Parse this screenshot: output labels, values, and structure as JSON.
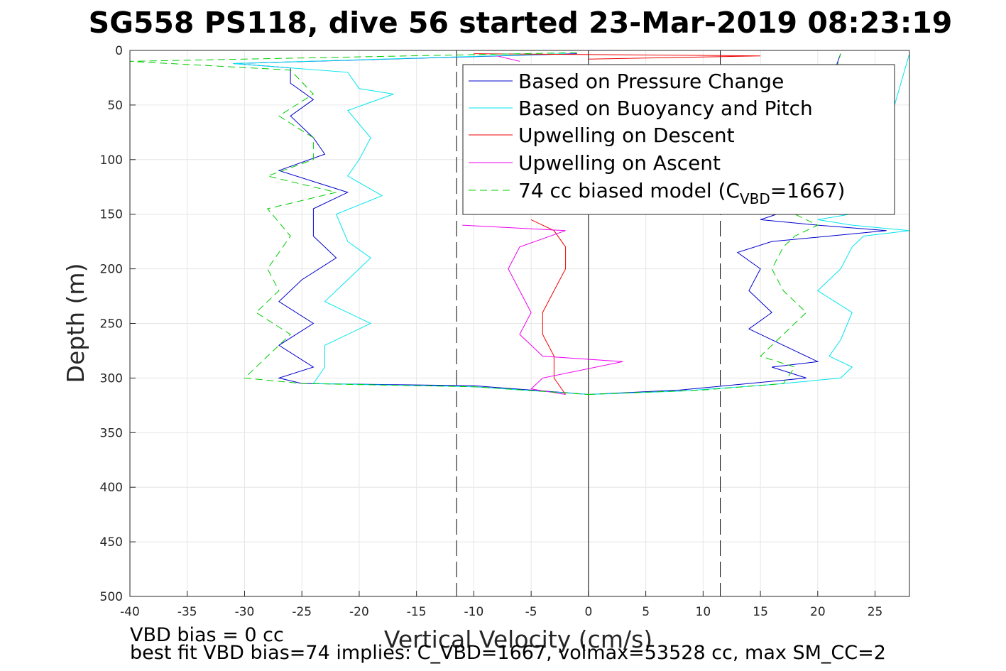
{
  "chart_data": {
    "type": "line",
    "title": "SG558 PS118, dive 56 started 23-Mar-2019 08:23:19",
    "xlabel": "Vertical Velocity (cm/s)",
    "ylabel": "Depth (m)",
    "xlim": [
      -40,
      28
    ],
    "ylim": [
      0,
      500
    ],
    "y_reversed": true,
    "x_ticks": [
      "-40",
      "-35",
      "-30",
      "-25",
      "-20",
      "-15",
      "-10",
      "-5",
      "0",
      "5",
      "10",
      "15",
      "20",
      "25"
    ],
    "y_ticks": [
      "0",
      "50",
      "100",
      "150",
      "200",
      "250",
      "300",
      "350",
      "400",
      "450",
      "500"
    ],
    "grid": true,
    "legend_position": "top-right",
    "vertical_lines": [
      {
        "x": -11.5,
        "style": "dashed"
      },
      {
        "x": 0,
        "style": "solid"
      },
      {
        "x": 11.5,
        "style": "dashed"
      }
    ],
    "series": [
      {
        "name": "Based on Pressure Change",
        "color": "#0000cc",
        "dash": false,
        "descent": [
          [
            -1,
            3
          ],
          [
            -31,
            12
          ],
          [
            -26,
            16
          ],
          [
            -26,
            30
          ],
          [
            -24,
            45
          ],
          [
            -26,
            60
          ],
          [
            -24,
            80
          ],
          [
            -23,
            95
          ],
          [
            -27,
            110
          ],
          [
            -24,
            120
          ],
          [
            -21,
            130
          ],
          [
            -24,
            145
          ],
          [
            -24,
            170
          ],
          [
            -22,
            190
          ],
          [
            -25,
            210
          ],
          [
            -27,
            230
          ],
          [
            -24,
            250
          ],
          [
            -27,
            270
          ],
          [
            -24,
            290
          ],
          [
            -27,
            300
          ],
          [
            -25,
            305
          ],
          [
            -10,
            307
          ],
          [
            0,
            315
          ]
        ],
        "ascent": [
          [
            0,
            315
          ],
          [
            8,
            311
          ],
          [
            14,
            305
          ],
          [
            19,
            300
          ],
          [
            16,
            290
          ],
          [
            20,
            285
          ],
          [
            17,
            270
          ],
          [
            14,
            255
          ],
          [
            16,
            240
          ],
          [
            14,
            220
          ],
          [
            15,
            200
          ],
          [
            13,
            185
          ],
          [
            16,
            175
          ],
          [
            21,
            170
          ],
          [
            26,
            165
          ],
          [
            20,
            160
          ],
          [
            15,
            155
          ],
          [
            17,
            148
          ],
          [
            22,
            3
          ]
        ]
      },
      {
        "name": "Based on Buoyancy and Pitch",
        "color": "#00e5ee",
        "dash": false,
        "descent": [
          [
            -2,
            3
          ],
          [
            -31,
            12
          ],
          [
            -21,
            20
          ],
          [
            -20,
            35
          ],
          [
            -17,
            40
          ],
          [
            -21,
            55
          ],
          [
            -19,
            80
          ],
          [
            -20,
            100
          ],
          [
            -21,
            115
          ],
          [
            -18,
            133
          ],
          [
            -22,
            150
          ],
          [
            -21,
            175
          ],
          [
            -19,
            190
          ],
          [
            -21,
            210
          ],
          [
            -23,
            230
          ],
          [
            -19,
            250
          ],
          [
            -23,
            270
          ],
          [
            -23,
            290
          ],
          [
            -24,
            305
          ],
          [
            -10,
            308
          ],
          [
            0,
            315
          ]
        ],
        "ascent": [
          [
            0,
            315
          ],
          [
            8,
            312
          ],
          [
            16,
            306
          ],
          [
            22,
            300
          ],
          [
            23,
            290
          ],
          [
            21,
            280
          ],
          [
            22,
            265
          ],
          [
            23,
            240
          ],
          [
            20,
            220
          ],
          [
            22,
            200
          ],
          [
            23,
            180
          ],
          [
            24,
            170
          ],
          [
            28,
            165
          ],
          [
            23,
            160
          ],
          [
            20,
            155
          ],
          [
            24,
            148
          ],
          [
            28,
            3
          ]
        ]
      },
      {
        "name": "Upwelling on Descent",
        "color": "#ee0000",
        "dash": false,
        "descent": [
          [
            -10,
            3
          ],
          [
            15,
            5
          ],
          [
            0,
            8
          ]
        ],
        "ascent": [
          [
            -5,
            155
          ],
          [
            -3,
            165
          ],
          [
            -2,
            180
          ],
          [
            -2,
            200
          ],
          [
            -3,
            220
          ],
          [
            -4,
            240
          ],
          [
            -4,
            260
          ],
          [
            -3,
            280
          ],
          [
            -3,
            300
          ],
          [
            -2,
            315
          ]
        ]
      },
      {
        "name": "Upwelling on Ascent",
        "color": "#ee00ee",
        "dash": false,
        "descent": [
          [
            -8,
            5
          ],
          [
            -6,
            10
          ]
        ],
        "ascent": [
          [
            -11,
            160
          ],
          [
            -2,
            165
          ],
          [
            -6,
            180
          ],
          [
            -7,
            200
          ],
          [
            -6,
            220
          ],
          [
            -5,
            240
          ],
          [
            -6,
            260
          ],
          [
            -4,
            280
          ],
          [
            3,
            285
          ],
          [
            -4,
            300
          ],
          [
            -5,
            310
          ],
          [
            -2,
            315
          ]
        ]
      },
      {
        "name": "74 cc biased model (C_VBD=1667)",
        "color": "#00cc00",
        "dash": true,
        "descent": [
          [
            -1,
            2
          ],
          [
            -40,
            10
          ],
          [
            -26,
            18
          ],
          [
            -24,
            40
          ],
          [
            -27,
            60
          ],
          [
            -24,
            80
          ],
          [
            -24,
            100
          ],
          [
            -28,
            115
          ],
          [
            -22,
            130
          ],
          [
            -28,
            145
          ],
          [
            -26,
            170
          ],
          [
            -28,
            200
          ],
          [
            -27,
            220
          ],
          [
            -29,
            240
          ],
          [
            -26,
            260
          ],
          [
            -28,
            280
          ],
          [
            -30,
            300
          ],
          [
            -25,
            305
          ],
          [
            -10,
            308
          ],
          [
            0,
            315
          ]
        ],
        "ascent": [
          [
            0,
            315
          ],
          [
            10,
            311
          ],
          [
            17,
            305
          ],
          [
            18,
            290
          ],
          [
            15,
            280
          ],
          [
            17,
            260
          ],
          [
            19,
            240
          ],
          [
            17,
            220
          ],
          [
            16,
            200
          ],
          [
            17,
            180
          ],
          [
            18,
            170
          ],
          [
            20,
            160
          ],
          [
            18,
            150
          ],
          [
            22,
            3
          ]
        ]
      }
    ]
  },
  "legend": {
    "entries": [
      "Based on Pressure Change",
      "Based on Buoyancy and Pitch",
      "Upwelling on Descent",
      "Upwelling on Ascent"
    ],
    "model_prefix": "74 cc biased model (C",
    "model_sub": "VBD",
    "model_suffix": "=1667)"
  },
  "notes": {
    "line1": "VBD bias = 0 cc",
    "line2": "best fit VBD bias=74 implies: C_VBD=1667, volmax=53528 cc, max SM_CC=2"
  }
}
